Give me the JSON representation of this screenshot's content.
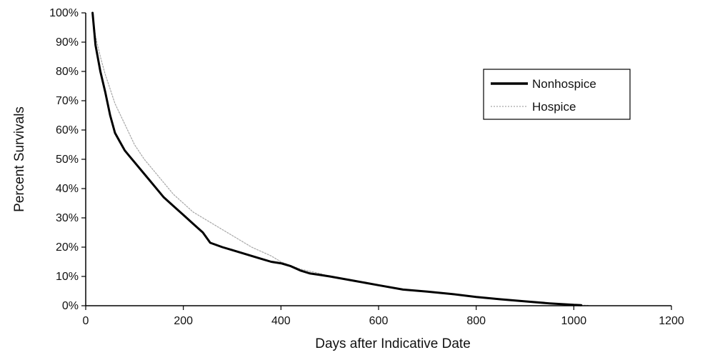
{
  "chart_data": {
    "type": "line",
    "title": "",
    "xlabel": "Days after Indicative Date",
    "ylabel": "Percent Survivals",
    "xlim": [
      0,
      1200
    ],
    "ylim": [
      0,
      100
    ],
    "x_ticks": [
      0,
      200,
      400,
      600,
      800,
      1000,
      1200
    ],
    "x_tick_labels": [
      "0",
      "200",
      "400",
      "600",
      "800",
      "1000",
      "1200"
    ],
    "y_ticks": [
      0,
      10,
      20,
      30,
      40,
      50,
      60,
      70,
      80,
      90,
      100
    ],
    "y_tick_labels": [
      "0%",
      "10%",
      "20%",
      "30%",
      "40%",
      "50%",
      "60%",
      "70%",
      "80%",
      "90%",
      "100%"
    ],
    "grid": false,
    "legend_position": "right",
    "series": [
      {
        "name": "Nonhospice",
        "color": "#000000",
        "style": "thick-solid",
        "x": [
          14,
          20,
          30,
          40,
          50,
          60,
          70,
          80,
          90,
          100,
          120,
          140,
          160,
          180,
          200,
          220,
          240,
          255,
          280,
          300,
          320,
          340,
          360,
          380,
          400,
          420,
          440,
          460,
          480,
          500,
          550,
          600,
          650,
          700,
          750,
          800,
          850,
          900,
          950,
          1000,
          1015
        ],
        "y": [
          100,
          89,
          80,
          73,
          65,
          59,
          56,
          53,
          51,
          49,
          45,
          41,
          37,
          34,
          31,
          28,
          25,
          21.5,
          20,
          19,
          18,
          17,
          16,
          15,
          14.5,
          13.5,
          12,
          11,
          10.5,
          10,
          8.5,
          7,
          5.5,
          4.8,
          4,
          3,
          2.2,
          1.5,
          0.8,
          0.3,
          0.2
        ]
      },
      {
        "name": "Hospice",
        "color": "#a6a6a6",
        "style": "thin-dotted",
        "x": [
          14,
          20,
          30,
          40,
          50,
          60,
          80,
          100,
          120,
          140,
          160,
          180,
          200,
          220,
          250,
          280,
          300,
          340,
          380,
          400,
          440,
          480,
          500,
          550,
          600,
          650,
          700,
          750,
          800,
          850,
          900,
          950,
          1000,
          1030
        ],
        "y": [
          100,
          92,
          85,
          79,
          74,
          69,
          62,
          55,
          50,
          46,
          42,
          38,
          35,
          32,
          29,
          26,
          24,
          20,
          17,
          15,
          12.5,
          11,
          10,
          8.5,
          7,
          5.5,
          4.8,
          4,
          3,
          2.2,
          1.5,
          0.8,
          0.3,
          0.1
        ]
      }
    ]
  }
}
